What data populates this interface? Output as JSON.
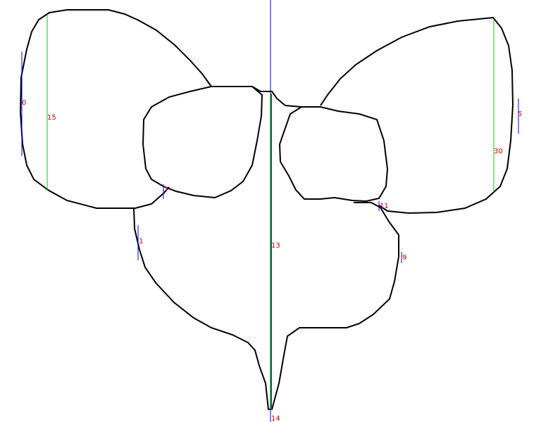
{
  "colors": {
    "outline": "#000000",
    "axis": "#0000ff",
    "measure": "#00cc00",
    "central_measure": "#007700",
    "label": "#cc0000"
  },
  "labels": {
    "l0": "0",
    "l1": "1",
    "l5": "5",
    "l7": "7",
    "l9": "9",
    "l11": "11",
    "l13": "13",
    "l14": "14",
    "l15": "15",
    "l30": "30"
  }
}
